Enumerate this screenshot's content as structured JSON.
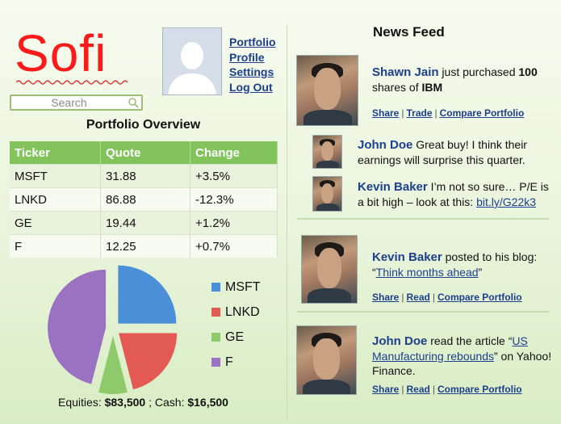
{
  "brand": {
    "logo_text": "Sofi"
  },
  "search": {
    "placeholder": "Search"
  },
  "profile_menu": {
    "links": [
      "Portfolio",
      "Profile",
      "Settings",
      "Log Out"
    ]
  },
  "portfolio": {
    "title": "Portfolio Overview",
    "columns": [
      "Ticker",
      "Quote",
      "Change"
    ],
    "rows": [
      {
        "ticker": "MSFT",
        "quote": "31.88",
        "change": "+3.5%"
      },
      {
        "ticker": "LNKD",
        "quote": "86.88",
        "change": "-12.3%"
      },
      {
        "ticker": "GE",
        "quote": "19.44",
        "change": "+1.2%"
      },
      {
        "ticker": "F",
        "quote": "12.25",
        "change": "+0.7%"
      }
    ],
    "equities_label": "Equities:",
    "equities_value": "$83,500",
    "cash_separator": " ; Cash:",
    "cash_value": "$16,500"
  },
  "chart_data": {
    "type": "pie",
    "categories": [
      "MSFT",
      "LNKD",
      "GE",
      "F"
    ],
    "values": [
      25,
      21,
      8,
      46
    ],
    "colors": [
      "#4a8fd8",
      "#e35a55",
      "#8ec96a",
      "#9b72c2"
    ],
    "legend_position": "right"
  },
  "news": {
    "title": "News Feed",
    "items": [
      {
        "name": "Shawn Jain",
        "text_before": " just purchased ",
        "bold_1": "100",
        "text_mid": " shares of ",
        "bold_2": "IBM",
        "actions": [
          "Share",
          "Trade",
          "Compare Portfolio"
        ]
      },
      {
        "name": "John Doe",
        "text": " Great buy! I think their earnings will surprise this quarter."
      },
      {
        "name": "Kevin Baker",
        "text": " I’m not so sure… P/E is a bit high – look at this: ",
        "link": "bit.ly/G22k3"
      },
      {
        "name": "Kevin Baker",
        "text_before": " posted to his blog: “",
        "link": "Think months ahead",
        "text_after": "”",
        "actions": [
          "Share",
          "Read",
          "Compare Portfolio"
        ]
      },
      {
        "name": "John Doe",
        "text_before": " read the article “",
        "link": "US Manufacturing rebounds",
        "text_after": "” on Yahoo! Finance.",
        "actions": [
          "Share",
          "Read",
          "Compare Portfolio"
        ]
      }
    ]
  }
}
